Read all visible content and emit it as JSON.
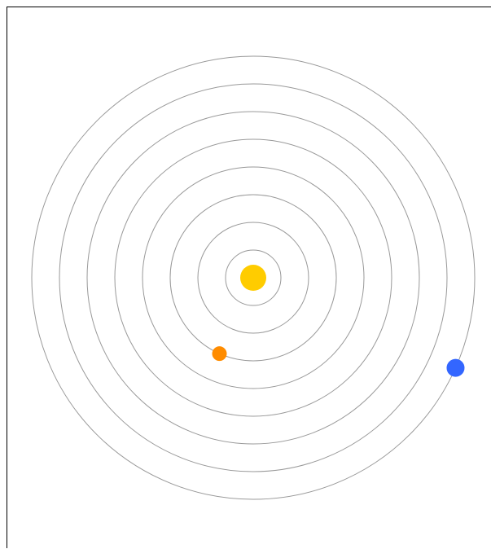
{
  "scene": {
    "background": "#ffffff",
    "frame_border_color": "#000000",
    "orbit_color": "#999999",
    "orbit_count": 8,
    "sun": {
      "name": "sun",
      "color": "#ffcc00"
    },
    "planets": [
      {
        "name": "orange-planet",
        "color": "#ff8c00",
        "orbit_index": 3,
        "angle_deg": 114
      },
      {
        "name": "blue-planet",
        "color": "#3366ff",
        "orbit_index": 8,
        "angle_deg": 24
      }
    ]
  }
}
